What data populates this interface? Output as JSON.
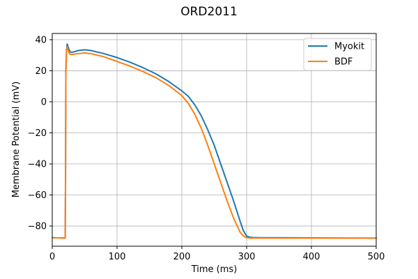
{
  "chart_data": {
    "type": "line",
    "title": "ORD2011",
    "xlabel": "Time (ms)",
    "ylabel": "Membrane Potential (mV)",
    "xlim": [
      0,
      500
    ],
    "ylim": [
      -93,
      44
    ],
    "xticks": [
      0,
      100,
      200,
      300,
      400,
      500
    ],
    "yticks": [
      -80,
      -60,
      -40,
      -20,
      0,
      20,
      40
    ],
    "xtick_labels": [
      "0",
      "100",
      "200",
      "300",
      "400",
      "500"
    ],
    "ytick_labels": [
      "−80",
      "−60",
      "−40",
      "−20",
      "0",
      "20",
      "40"
    ],
    "grid": true,
    "legend_position": "top-right",
    "series": [
      {
        "name": "Myokit",
        "color": "#1f77b4",
        "x": [
          0,
          20,
          20.5,
          21,
          22,
          23,
          24,
          26,
          28,
          32,
          40,
          50,
          60,
          80,
          100,
          120,
          140,
          160,
          180,
          200,
          210,
          220,
          230,
          240,
          250,
          260,
          270,
          280,
          290,
          295,
          300,
          305,
          310,
          320,
          350,
          400,
          450,
          500
        ],
        "y": [
          -87.5,
          -87.7,
          -50,
          20,
          33,
          37.2,
          36,
          33.5,
          32,
          32,
          33,
          33.5,
          33,
          31,
          28.5,
          25.5,
          22,
          18,
          13,
          7,
          3.5,
          -2,
          -9,
          -18,
          -28,
          -40,
          -52,
          -64,
          -77,
          -83,
          -86.5,
          -87.2,
          -87.4,
          -87.5,
          -87.5,
          -87.6,
          -87.7,
          -87.8
        ]
      },
      {
        "name": "BDF",
        "color": "#ff7f0e",
        "x": [
          0,
          20,
          20.5,
          21,
          22,
          23,
          24,
          26,
          28,
          32,
          40,
          50,
          60,
          80,
          100,
          120,
          140,
          160,
          180,
          200,
          210,
          220,
          230,
          240,
          250,
          260,
          270,
          280,
          290,
          295,
          300,
          305,
          310,
          320,
          350,
          400,
          450,
          500
        ],
        "y": [
          -87.5,
          -87.8,
          -50,
          18,
          32,
          35.5,
          34,
          31.5,
          30.5,
          30.5,
          31,
          31.5,
          31,
          29,
          26,
          23,
          19.5,
          15.5,
          10.5,
          4,
          -1,
          -8,
          -17,
          -28,
          -40,
          -52,
          -64,
          -75,
          -84,
          -86.5,
          -87.5,
          -87.8,
          -87.8,
          -87.8,
          -87.8,
          -87.8,
          -87.8,
          -87.8
        ]
      }
    ]
  }
}
